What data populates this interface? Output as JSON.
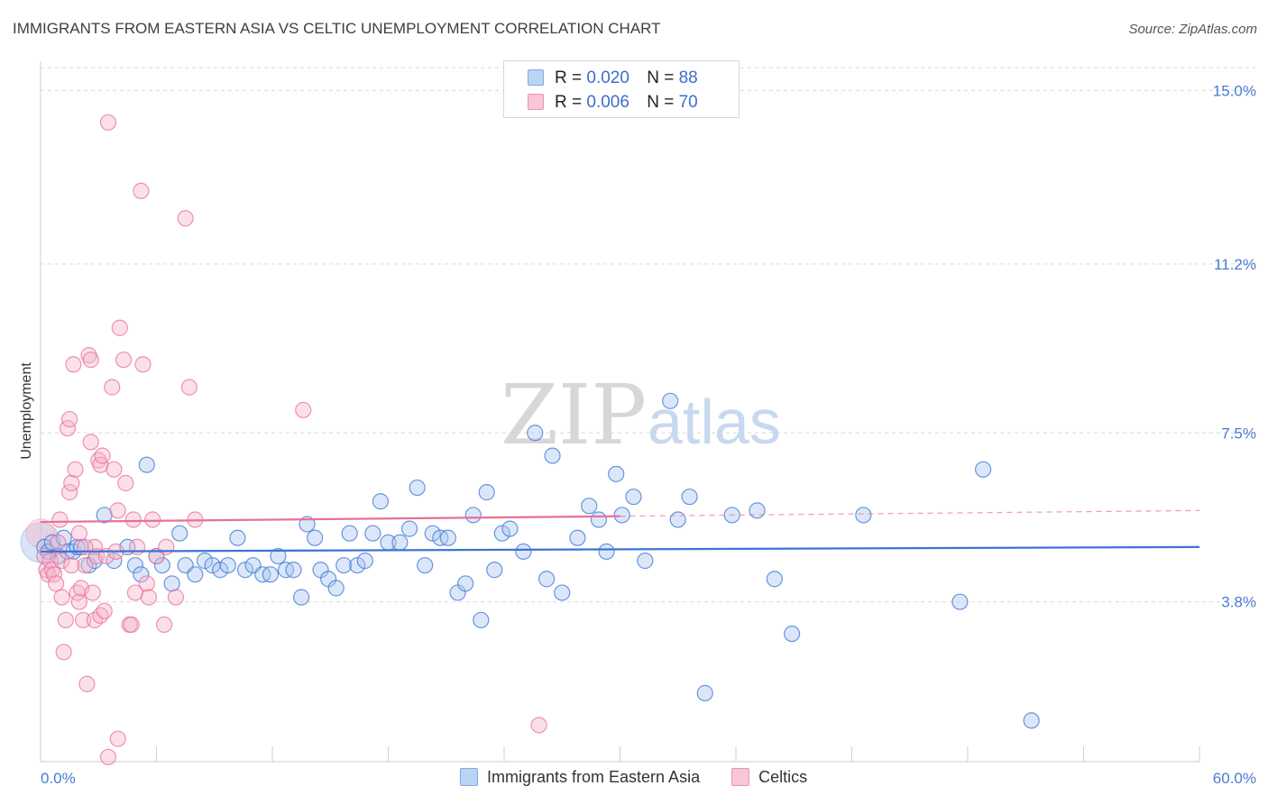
{
  "title": "IMMIGRANTS FROM EASTERN ASIA VS CELTIC UNEMPLOYMENT CORRELATION CHART",
  "source": "Source: ZipAtlas.com",
  "watermark": {
    "zip": "ZIP",
    "atlas": "atlas"
  },
  "legend": {
    "blue": {
      "r_label": "R =",
      "r_value": "0.020",
      "n_label": "N =",
      "n_value": "88"
    },
    "pink": {
      "r_label": "R =",
      "r_value": "0.006",
      "n_label": "N =",
      "n_value": "70"
    }
  },
  "colors": {
    "blue": "#3b74d4",
    "blue_fill": "#a9c6f0",
    "pink": "#e8709a",
    "pink_fill": "#f6b6cb",
    "axis_label": "#4a7bd0"
  },
  "chart_data": {
    "type": "scatter",
    "title": "IMMIGRANTS FROM EASTERN ASIA VS CELTIC UNEMPLOYMENT CORRELATION CHART",
    "xlabel": "",
    "ylabel": "Unemployment",
    "xlim": [
      0,
      60
    ],
    "ylim": [
      0.3,
      15.5
    ],
    "x_tick_labels": [
      "0.0%",
      "60.0%"
    ],
    "y_ticks": [
      3.8,
      7.5,
      11.2,
      15.0
    ],
    "y_tick_labels": [
      "3.8%",
      "7.5%",
      "11.2%",
      "15.0%"
    ],
    "grid": true,
    "series": [
      {
        "name": "Immigrants from Eastern Asia",
        "color": "blue",
        "trend": {
          "x": [
            0,
            60
          ],
          "y": [
            4.9,
            5.0
          ],
          "solid_to": 60
        },
        "points": [
          [
            0.2,
            5.0
          ],
          [
            0.4,
            4.9
          ],
          [
            0.6,
            5.1
          ],
          [
            0.9,
            4.8
          ],
          [
            1.2,
            5.2
          ],
          [
            1.4,
            4.9
          ],
          [
            1.7,
            4.9
          ],
          [
            1.9,
            5.0
          ],
          [
            2.1,
            5.0
          ],
          [
            2.5,
            4.6
          ],
          [
            2.8,
            4.7
          ],
          [
            3.3,
            5.7
          ],
          [
            3.8,
            4.7
          ],
          [
            4.5,
            5.0
          ],
          [
            4.9,
            4.6
          ],
          [
            5.2,
            4.4
          ],
          [
            5.5,
            6.8
          ],
          [
            6.0,
            4.8
          ],
          [
            6.3,
            4.6
          ],
          [
            6.8,
            4.2
          ],
          [
            7.2,
            5.3
          ],
          [
            7.5,
            4.6
          ],
          [
            8.0,
            4.4
          ],
          [
            8.5,
            4.7
          ],
          [
            8.9,
            4.6
          ],
          [
            9.3,
            4.5
          ],
          [
            9.7,
            4.6
          ],
          [
            10.2,
            5.2
          ],
          [
            10.6,
            4.5
          ],
          [
            11.0,
            4.6
          ],
          [
            11.5,
            4.4
          ],
          [
            11.9,
            4.4
          ],
          [
            12.3,
            4.8
          ],
          [
            12.7,
            4.5
          ],
          [
            13.1,
            4.5
          ],
          [
            13.5,
            3.9
          ],
          [
            13.8,
            5.5
          ],
          [
            14.2,
            5.2
          ],
          [
            14.5,
            4.5
          ],
          [
            14.9,
            4.3
          ],
          [
            15.3,
            4.1
          ],
          [
            15.7,
            4.6
          ],
          [
            16.0,
            5.3
          ],
          [
            16.4,
            4.6
          ],
          [
            16.8,
            4.7
          ],
          [
            17.2,
            5.3
          ],
          [
            17.6,
            6.0
          ],
          [
            18.0,
            5.1
          ],
          [
            18.6,
            5.1
          ],
          [
            19.1,
            5.4
          ],
          [
            19.5,
            6.3
          ],
          [
            19.9,
            4.6
          ],
          [
            20.3,
            5.3
          ],
          [
            20.7,
            5.2
          ],
          [
            21.1,
            5.2
          ],
          [
            21.6,
            4.0
          ],
          [
            22.0,
            4.2
          ],
          [
            22.4,
            5.7
          ],
          [
            22.8,
            3.4
          ],
          [
            23.1,
            6.2
          ],
          [
            23.5,
            4.5
          ],
          [
            23.9,
            5.3
          ],
          [
            24.3,
            5.4
          ],
          [
            25.0,
            4.9
          ],
          [
            25.6,
            7.5
          ],
          [
            26.2,
            4.3
          ],
          [
            26.5,
            7.0
          ],
          [
            27.0,
            4.0
          ],
          [
            27.8,
            5.2
          ],
          [
            28.4,
            5.9
          ],
          [
            28.9,
            5.6
          ],
          [
            29.3,
            4.9
          ],
          [
            29.8,
            6.6
          ],
          [
            30.1,
            5.7
          ],
          [
            30.7,
            6.1
          ],
          [
            31.3,
            4.7
          ],
          [
            32.6,
            8.2
          ],
          [
            33.0,
            5.6
          ],
          [
            33.6,
            6.1
          ],
          [
            34.4,
            1.8
          ],
          [
            35.8,
            5.7
          ],
          [
            37.1,
            5.8
          ],
          [
            38.0,
            4.3
          ],
          [
            38.9,
            3.1
          ],
          [
            42.6,
            5.7
          ],
          [
            47.6,
            3.8
          ],
          [
            48.8,
            6.7
          ],
          [
            51.3,
            1.2
          ]
        ]
      },
      {
        "name": "Celtics",
        "color": "pink",
        "trend": {
          "x": [
            0,
            60
          ],
          "y": [
            5.55,
            5.8
          ],
          "solid_to": 30
        },
        "points": [
          [
            0.2,
            4.8
          ],
          [
            0.3,
            4.5
          ],
          [
            0.4,
            4.4
          ],
          [
            0.5,
            4.7
          ],
          [
            0.6,
            4.5
          ],
          [
            0.7,
            4.4
          ],
          [
            0.8,
            4.2
          ],
          [
            0.9,
            5.1
          ],
          [
            1.0,
            5.6
          ],
          [
            1.1,
            3.9
          ],
          [
            1.1,
            4.7
          ],
          [
            1.2,
            2.7
          ],
          [
            1.3,
            3.4
          ],
          [
            1.4,
            7.6
          ],
          [
            1.5,
            7.8
          ],
          [
            1.5,
            6.2
          ],
          [
            1.6,
            6.4
          ],
          [
            1.7,
            9.0
          ],
          [
            1.8,
            6.7
          ],
          [
            1.9,
            4.0
          ],
          [
            2.0,
            3.8
          ],
          [
            2.0,
            5.3
          ],
          [
            2.1,
            4.1
          ],
          [
            2.2,
            3.4
          ],
          [
            2.3,
            4.6
          ],
          [
            2.4,
            2.0
          ],
          [
            2.5,
            9.2
          ],
          [
            2.6,
            9.1
          ],
          [
            2.7,
            4.0
          ],
          [
            2.8,
            3.4
          ],
          [
            2.8,
            5.0
          ],
          [
            2.9,
            4.8
          ],
          [
            3.0,
            6.9
          ],
          [
            3.1,
            3.5
          ],
          [
            3.1,
            6.8
          ],
          [
            3.2,
            7.0
          ],
          [
            3.3,
            3.6
          ],
          [
            3.4,
            4.8
          ],
          [
            3.5,
            14.3
          ],
          [
            3.7,
            8.5
          ],
          [
            3.8,
            6.7
          ],
          [
            3.9,
            4.9
          ],
          [
            4.0,
            5.8
          ],
          [
            4.0,
            0.8
          ],
          [
            4.1,
            9.8
          ],
          [
            4.3,
            9.1
          ],
          [
            4.4,
            6.4
          ],
          [
            4.6,
            3.3
          ],
          [
            4.7,
            3.3
          ],
          [
            4.8,
            5.6
          ],
          [
            4.9,
            4.0
          ],
          [
            5.0,
            5.0
          ],
          [
            5.2,
            12.8
          ],
          [
            5.3,
            9.0
          ],
          [
            5.5,
            4.2
          ],
          [
            5.6,
            3.9
          ],
          [
            5.8,
            5.6
          ],
          [
            6.0,
            4.8
          ],
          [
            6.4,
            3.3
          ],
          [
            6.5,
            5.0
          ],
          [
            7.0,
            3.9
          ],
          [
            7.5,
            12.2
          ],
          [
            7.7,
            8.5
          ],
          [
            8.0,
            5.6
          ],
          [
            1.6,
            4.6
          ],
          [
            2.3,
            5.0
          ],
          [
            13.6,
            8.0
          ],
          [
            25.8,
            1.1
          ],
          [
            3.5,
            0.4
          ],
          [
            2.6,
            7.3
          ]
        ]
      }
    ]
  },
  "bottom_legend": [
    "Immigrants from Eastern Asia",
    "Celtics"
  ]
}
